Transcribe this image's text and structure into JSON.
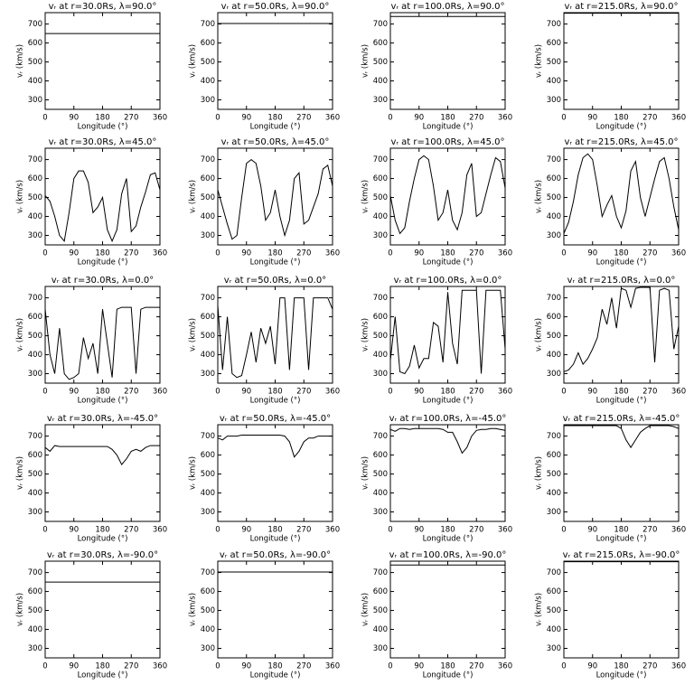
{
  "chart_data": [
    {
      "type": "line",
      "title": "vᵣ at r=30.0Rs, λ=90.0°",
      "xlabel": "Longitude (°)",
      "ylabel": "vᵣ (km/s)",
      "x": [
        0,
        360
      ],
      "values": [
        650,
        650
      ],
      "xlim": [
        0,
        360
      ],
      "ylim": [
        250,
        760
      ],
      "xticks": [
        0,
        90,
        180,
        270,
        360
      ],
      "yticks": [
        300,
        400,
        500,
        600,
        700
      ],
      "color": "#000000"
    },
    {
      "type": "line",
      "title": "vᵣ at r=50.0Rs, λ=90.0°",
      "xlabel": "Longitude (°)",
      "ylabel": "vᵣ (km/s)",
      "x": [
        0,
        360
      ],
      "values": [
        703,
        703
      ],
      "xlim": [
        0,
        360
      ],
      "ylim": [
        250,
        760
      ],
      "xticks": [
        0,
        90,
        180,
        270,
        360
      ],
      "yticks": [
        300,
        400,
        500,
        600,
        700
      ],
      "color": "#000000"
    },
    {
      "type": "line",
      "title": "vᵣ at r=100.0Rs, λ=90.0°",
      "xlabel": "Longitude (°)",
      "ylabel": "vᵣ (km/s)",
      "x": [
        0,
        360
      ],
      "values": [
        740,
        740
      ],
      "xlim": [
        0,
        360
      ],
      "ylim": [
        250,
        760
      ],
      "xticks": [
        0,
        90,
        180,
        270,
        360
      ],
      "yticks": [
        300,
        400,
        500,
        600,
        700
      ],
      "color": "#000000"
    },
    {
      "type": "line",
      "title": "vᵣ at r=215.0Rs, λ=90.0°",
      "xlabel": "Longitude (°)",
      "ylabel": "vᵣ (km/s)",
      "x": [
        0,
        360
      ],
      "values": [
        757,
        757
      ],
      "xlim": [
        0,
        360
      ],
      "ylim": [
        250,
        760
      ],
      "xticks": [
        0,
        90,
        180,
        270,
        360
      ],
      "yticks": [
        300,
        400,
        500,
        600,
        700
      ],
      "color": "#000000"
    },
    {
      "type": "line",
      "title": "vᵣ at r=30.0Rs, λ=45.0°",
      "xlabel": "Longitude (°)",
      "ylabel": "vᵣ (km/s)",
      "x": [
        0,
        15,
        30,
        45,
        60,
        75,
        90,
        105,
        120,
        135,
        150,
        165,
        180,
        195,
        210,
        225,
        240,
        255,
        270,
        285,
        300,
        315,
        330,
        345,
        360
      ],
      "values": [
        510,
        480,
        400,
        300,
        270,
        420,
        600,
        640,
        640,
        580,
        420,
        450,
        500,
        330,
        270,
        330,
        520,
        600,
        320,
        350,
        450,
        530,
        620,
        630,
        540
      ],
      "xlim": [
        0,
        360
      ],
      "ylim": [
        250,
        760
      ],
      "xticks": [
        0,
        90,
        180,
        270,
        360
      ],
      "yticks": [
        300,
        400,
        500,
        600,
        700
      ],
      "color": "#000000"
    },
    {
      "type": "line",
      "title": "vᵣ at r=50.0Rs, λ=45.0°",
      "xlabel": "Longitude (°)",
      "ylabel": "vᵣ (km/s)",
      "x": [
        0,
        15,
        30,
        45,
        60,
        75,
        90,
        105,
        120,
        135,
        150,
        165,
        180,
        195,
        210,
        225,
        240,
        255,
        270,
        285,
        300,
        315,
        330,
        345,
        360
      ],
      "values": [
        540,
        450,
        360,
        280,
        300,
        500,
        680,
        700,
        680,
        560,
        380,
        420,
        540,
        400,
        300,
        380,
        600,
        630,
        360,
        380,
        450,
        520,
        650,
        670,
        560
      ],
      "xlim": [
        0,
        360
      ],
      "ylim": [
        250,
        760
      ],
      "xticks": [
        0,
        90,
        180,
        270,
        360
      ],
      "yticks": [
        300,
        400,
        500,
        600,
        700
      ],
      "color": "#000000"
    },
    {
      "type": "line",
      "title": "vᵣ at r=100.0Rs, λ=45.0°",
      "xlabel": "Longitude (°)",
      "ylabel": "vᵣ (km/s)",
      "x": [
        0,
        15,
        30,
        45,
        60,
        75,
        90,
        105,
        120,
        135,
        150,
        165,
        180,
        195,
        210,
        225,
        240,
        255,
        270,
        285,
        300,
        315,
        330,
        345,
        360
      ],
      "values": [
        510,
        380,
        310,
        340,
        480,
        600,
        700,
        720,
        700,
        560,
        380,
        420,
        540,
        380,
        330,
        420,
        620,
        680,
        400,
        420,
        520,
        620,
        710,
        690,
        550
      ],
      "xlim": [
        0,
        360
      ],
      "ylim": [
        250,
        760
      ],
      "xticks": [
        0,
        90,
        180,
        270,
        360
      ],
      "yticks": [
        300,
        400,
        500,
        600,
        700
      ],
      "color": "#000000"
    },
    {
      "type": "line",
      "title": "vᵣ at r=215.0Rs, λ=45.0°",
      "xlabel": "Longitude (°)",
      "ylabel": "vᵣ (km/s)",
      "x": [
        0,
        15,
        30,
        45,
        60,
        75,
        90,
        105,
        120,
        135,
        150,
        165,
        180,
        195,
        210,
        225,
        240,
        255,
        270,
        285,
        300,
        315,
        330,
        345,
        360
      ],
      "values": [
        310,
        370,
        480,
        620,
        710,
        730,
        700,
        560,
        400,
        460,
        510,
        400,
        340,
        430,
        640,
        690,
        500,
        400,
        500,
        600,
        690,
        710,
        600,
        450,
        330
      ],
      "xlim": [
        0,
        360
      ],
      "ylim": [
        250,
        760
      ],
      "xticks": [
        0,
        90,
        180,
        270,
        360
      ],
      "yticks": [
        300,
        400,
        500,
        600,
        700
      ],
      "color": "#000000"
    },
    {
      "type": "line",
      "title": "vᵣ at r=30.0Rs, λ=0.0°",
      "xlabel": "Longitude (°)",
      "ylabel": "vᵣ (km/s)",
      "x": [
        0,
        15,
        30,
        45,
        60,
        75,
        90,
        105,
        120,
        135,
        150,
        165,
        180,
        195,
        210,
        225,
        240,
        255,
        270,
        285,
        300,
        315,
        330,
        345,
        360
      ],
      "values": [
        640,
        400,
        300,
        540,
        300,
        270,
        280,
        300,
        490,
        380,
        460,
        300,
        640,
        460,
        280,
        640,
        650,
        650,
        650,
        300,
        640,
        650,
        650,
        650,
        650
      ],
      "xlim": [
        0,
        360
      ],
      "ylim": [
        250,
        760
      ],
      "xticks": [
        0,
        90,
        180,
        270,
        360
      ],
      "yticks": [
        300,
        400,
        500,
        600,
        700
      ],
      "color": "#000000"
    },
    {
      "type": "line",
      "title": "vᵣ at r=50.0Rs, λ=0.0°",
      "xlabel": "Longitude (°)",
      "ylabel": "vᵣ (km/s)",
      "x": [
        0,
        15,
        30,
        45,
        60,
        75,
        90,
        105,
        120,
        135,
        150,
        165,
        180,
        195,
        210,
        225,
        240,
        255,
        270,
        285,
        300,
        315,
        330,
        345,
        360
      ],
      "values": [
        660,
        320,
        600,
        300,
        280,
        290,
        400,
        520,
        360,
        540,
        460,
        550,
        350,
        700,
        700,
        320,
        700,
        700,
        700,
        320,
        700,
        700,
        700,
        700,
        640
      ],
      "xlim": [
        0,
        360
      ],
      "ylim": [
        250,
        760
      ],
      "xticks": [
        0,
        90,
        180,
        270,
        360
      ],
      "yticks": [
        300,
        400,
        500,
        600,
        700
      ],
      "color": "#000000"
    },
    {
      "type": "line",
      "title": "vᵣ at r=100.0Rs, λ=0.0°",
      "xlabel": "Longitude (°)",
      "ylabel": "vᵣ (km/s)",
      "x": [
        0,
        15,
        30,
        45,
        60,
        75,
        90,
        105,
        120,
        135,
        150,
        165,
        180,
        195,
        210,
        225,
        240,
        255,
        270,
        285,
        300,
        315,
        330,
        345,
        360
      ],
      "values": [
        370,
        600,
        310,
        300,
        340,
        450,
        330,
        380,
        380,
        570,
        550,
        360,
        730,
        460,
        350,
        740,
        740,
        740,
        740,
        300,
        740,
        740,
        740,
        740,
        430
      ],
      "xlim": [
        0,
        360
      ],
      "ylim": [
        250,
        760
      ],
      "xticks": [
        0,
        90,
        180,
        270,
        360
      ],
      "yticks": [
        300,
        400,
        500,
        600,
        700
      ],
      "color": "#000000"
    },
    {
      "type": "line",
      "title": "vᵣ at r=215.0Rs, λ=0.0°",
      "xlabel": "Longitude (°)",
      "ylabel": "vᵣ (km/s)",
      "x": [
        0,
        15,
        30,
        45,
        60,
        75,
        90,
        105,
        120,
        135,
        150,
        165,
        180,
        195,
        210,
        225,
        240,
        255,
        270,
        285,
        300,
        315,
        330,
        345,
        360
      ],
      "values": [
        310,
        320,
        350,
        410,
        350,
        380,
        430,
        490,
        640,
        560,
        700,
        540,
        750,
        740,
        650,
        750,
        755,
        755,
        755,
        360,
        740,
        750,
        740,
        430,
        550
      ],
      "xlim": [
        0,
        360
      ],
      "ylim": [
        250,
        760
      ],
      "xticks": [
        0,
        90,
        180,
        270,
        360
      ],
      "yticks": [
        300,
        400,
        500,
        600,
        700
      ],
      "color": "#000000"
    },
    {
      "type": "line",
      "title": "vᵣ at r=30.0Rs, λ=-45.0°",
      "xlabel": "Longitude (°)",
      "ylabel": "vᵣ (km/s)",
      "x": [
        0,
        15,
        30,
        45,
        60,
        75,
        90,
        105,
        120,
        135,
        150,
        165,
        180,
        195,
        210,
        225,
        240,
        255,
        270,
        285,
        300,
        315,
        330,
        345,
        360
      ],
      "values": [
        640,
        620,
        650,
        645,
        645,
        645,
        645,
        645,
        645,
        645,
        645,
        645,
        645,
        645,
        630,
        600,
        550,
        580,
        620,
        630,
        620,
        640,
        650,
        650,
        650
      ],
      "xlim": [
        0,
        360
      ],
      "ylim": [
        250,
        760
      ],
      "xticks": [
        0,
        90,
        180,
        270,
        360
      ],
      "yticks": [
        300,
        400,
        500,
        600,
        700
      ],
      "color": "#000000"
    },
    {
      "type": "line",
      "title": "vᵣ at r=50.0Rs, λ=-45.0°",
      "xlabel": "Longitude (°)",
      "ylabel": "vᵣ (km/s)",
      "x": [
        0,
        15,
        30,
        45,
        60,
        75,
        90,
        105,
        120,
        135,
        150,
        165,
        180,
        195,
        210,
        225,
        240,
        255,
        270,
        285,
        300,
        315,
        330,
        345,
        360
      ],
      "values": [
        690,
        680,
        700,
        700,
        700,
        705,
        705,
        705,
        705,
        705,
        705,
        705,
        705,
        705,
        700,
        670,
        590,
        620,
        670,
        690,
        690,
        700,
        700,
        700,
        700
      ],
      "xlim": [
        0,
        360
      ],
      "ylim": [
        250,
        760
      ],
      "xticks": [
        0,
        90,
        180,
        270,
        360
      ],
      "yticks": [
        300,
        400,
        500,
        600,
        700
      ],
      "color": "#000000"
    },
    {
      "type": "line",
      "title": "vᵣ at r=100.0Rs, λ=-45.0°",
      "xlabel": "Longitude (°)",
      "ylabel": "vᵣ (km/s)",
      "x": [
        0,
        15,
        30,
        45,
        60,
        75,
        90,
        105,
        120,
        135,
        150,
        165,
        180,
        195,
        210,
        225,
        240,
        255,
        270,
        285,
        300,
        315,
        330,
        345,
        360
      ],
      "values": [
        735,
        725,
        740,
        740,
        735,
        740,
        740,
        740,
        740,
        740,
        740,
        735,
        720,
        720,
        670,
        610,
        640,
        700,
        730,
        735,
        735,
        740,
        740,
        735,
        730
      ],
      "xlim": [
        0,
        360
      ],
      "ylim": [
        250,
        760
      ],
      "xticks": [
        0,
        90,
        180,
        270,
        360
      ],
      "yticks": [
        300,
        400,
        500,
        600,
        700
      ],
      "color": "#000000"
    },
    {
      "type": "line",
      "title": "vᵣ at r=215.0Rs, λ=-45.0°",
      "xlabel": "Longitude (°)",
      "ylabel": "vᵣ (km/s)",
      "x": [
        0,
        15,
        30,
        45,
        60,
        75,
        90,
        105,
        120,
        135,
        150,
        165,
        180,
        195,
        210,
        225,
        240,
        255,
        270,
        285,
        300,
        315,
        330,
        345,
        360
      ],
      "values": [
        755,
        755,
        755,
        755,
        755,
        755,
        755,
        755,
        755,
        755,
        755,
        755,
        740,
        680,
        640,
        680,
        720,
        740,
        755,
        755,
        755,
        755,
        755,
        750,
        740
      ],
      "xlim": [
        0,
        360
      ],
      "ylim": [
        250,
        760
      ],
      "xticks": [
        0,
        90,
        180,
        270,
        360
      ],
      "yticks": [
        300,
        400,
        500,
        600,
        700
      ],
      "color": "#000000"
    },
    {
      "type": "line",
      "title": "vᵣ at r=30.0Rs, λ=-90.0°",
      "xlabel": "Longitude (°)",
      "ylabel": "vᵣ (km/s)",
      "x": [
        0,
        360
      ],
      "values": [
        650,
        650
      ],
      "xlim": [
        0,
        360
      ],
      "ylim": [
        250,
        760
      ],
      "xticks": [
        0,
        90,
        180,
        270,
        360
      ],
      "yticks": [
        300,
        400,
        500,
        600,
        700
      ],
      "color": "#000000"
    },
    {
      "type": "line",
      "title": "vᵣ at r=50.0Rs, λ=-90.0°",
      "xlabel": "Longitude (°)",
      "ylabel": "vᵣ (km/s)",
      "x": [
        0,
        360
      ],
      "values": [
        703,
        703
      ],
      "xlim": [
        0,
        360
      ],
      "ylim": [
        250,
        760
      ],
      "xticks": [
        0,
        90,
        180,
        270,
        360
      ],
      "yticks": [
        300,
        400,
        500,
        600,
        700
      ],
      "color": "#000000"
    },
    {
      "type": "line",
      "title": "vᵣ at r=100.0Rs, λ=-90.0°",
      "xlabel": "Longitude (°)",
      "ylabel": "vᵣ (km/s)",
      "x": [
        0,
        360
      ],
      "values": [
        740,
        740
      ],
      "xlim": [
        0,
        360
      ],
      "ylim": [
        250,
        760
      ],
      "xticks": [
        0,
        90,
        180,
        270,
        360
      ],
      "yticks": [
        300,
        400,
        500,
        600,
        700
      ],
      "color": "#000000"
    },
    {
      "type": "line",
      "title": "vᵣ at r=215.0Rs, λ=-90.0°",
      "xlabel": "Longitude (°)",
      "ylabel": "vᵣ (km/s)",
      "x": [
        0,
        360
      ],
      "values": [
        757,
        757
      ],
      "xlim": [
        0,
        360
      ],
      "ylim": [
        250,
        760
      ],
      "xticks": [
        0,
        90,
        180,
        270,
        360
      ],
      "yticks": [
        300,
        400,
        500,
        600,
        700
      ],
      "color": "#000000"
    }
  ]
}
